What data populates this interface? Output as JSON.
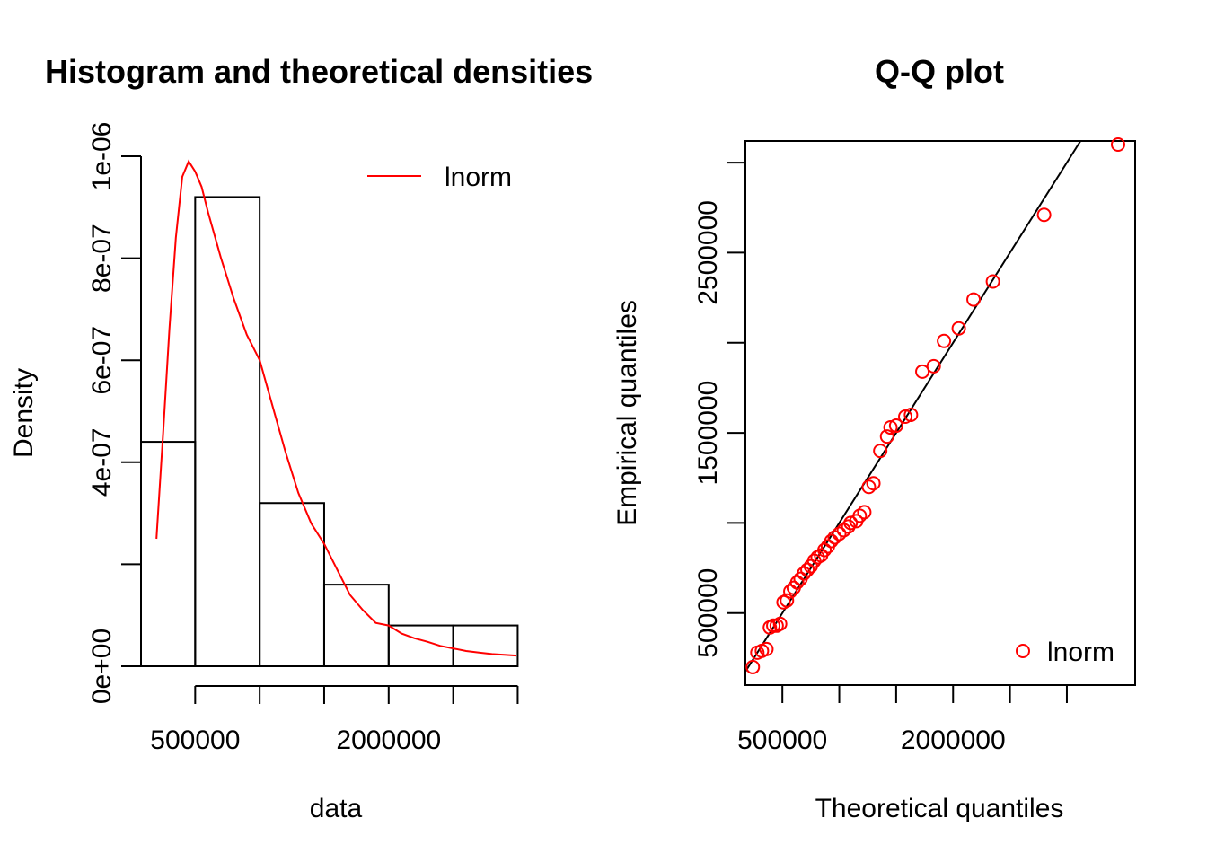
{
  "chart_data": [
    {
      "type": "bar",
      "title": "Histogram and theoretical densities",
      "xlabel": "data",
      "ylabel": "Density",
      "xlim": [
        80000,
        2990000
      ],
      "ylim": [
        0,
        1e-06
      ],
      "x_ticks": [
        500000,
        1000000,
        1500000,
        2000000,
        2500000,
        3000000
      ],
      "x_tick_labels": [
        "500000",
        "",
        "",
        "2000000",
        "",
        ""
      ],
      "y_ticks": [
        0,
        2e-07,
        4e-07,
        6e-07,
        8e-07,
        1e-06
      ],
      "y_tick_labels": [
        "0e+00",
        "",
        "4e-07",
        "6e-07",
        "8e-07",
        "1e-06"
      ],
      "bins": [
        {
          "from": 80000,
          "to": 500000,
          "density": 4.4e-07
        },
        {
          "from": 500000,
          "to": 1000000,
          "density": 9.2e-07
        },
        {
          "from": 1000000,
          "to": 1500000,
          "density": 3.2e-07
        },
        {
          "from": 1500000,
          "to": 2000000,
          "density": 1.6e-07
        },
        {
          "from": 2000000,
          "to": 2500000,
          "density": 8e-08
        },
        {
          "from": 2500000,
          "to": 3000000,
          "density": 8e-08
        }
      ],
      "series": [
        {
          "name": "lnorm",
          "color": "#ff0000",
          "kind": "line",
          "points": [
            [
              200000,
              2.5e-07
            ],
            [
              250000,
              4.5e-07
            ],
            [
              300000,
              6.6e-07
            ],
            [
              350000,
              8.4e-07
            ],
            [
              400000,
              9.6e-07
            ],
            [
              450000,
              9.9e-07
            ],
            [
              500000,
              9.7e-07
            ],
            [
              550000,
              9.4e-07
            ],
            [
              600000,
              8.9e-07
            ],
            [
              700000,
              8e-07
            ],
            [
              800000,
              7.2e-07
            ],
            [
              900000,
              6.5e-07
            ],
            [
              1000000,
              6e-07
            ],
            [
              1100000,
              5.1e-07
            ],
            [
              1200000,
              4.2e-07
            ],
            [
              1300000,
              3.4e-07
            ],
            [
              1400000,
              2.8e-07
            ],
            [
              1500000,
              2.4e-07
            ],
            [
              1600000,
              1.9e-07
            ],
            [
              1700000,
              1.4e-07
            ],
            [
              1800000,
              1.1e-07
            ],
            [
              1900000,
              8.5e-08
            ],
            [
              2000000,
              8e-08
            ],
            [
              2100000,
              6.4e-08
            ],
            [
              2200000,
              5.5e-08
            ],
            [
              2300000,
              4.8e-08
            ],
            [
              2400000,
              4e-08
            ],
            [
              2500000,
              3.5e-08
            ],
            [
              2600000,
              3e-08
            ],
            [
              2700000,
              2.7e-08
            ],
            [
              2800000,
              2.4e-08
            ],
            [
              2990000,
              2.1e-08
            ]
          ]
        }
      ],
      "legend": {
        "entries": [
          "lnorm"
        ],
        "position": "top-right"
      }
    },
    {
      "type": "scatter",
      "title": "Q-Q plot",
      "xlabel": "Theoretical quantiles",
      "ylabel": "Empirical quantiles",
      "xlim": [
        175000,
        3600000
      ],
      "ylim": [
        100000,
        3120000
      ],
      "x_ticks": [
        500000,
        1000000,
        1500000,
        2000000,
        2500000,
        3000000
      ],
      "x_tick_labels": [
        "500000",
        "",
        "",
        "2000000",
        "",
        ""
      ],
      "y_ticks": [
        500000,
        1000000,
        1500000,
        2000000,
        2500000,
        3000000
      ],
      "y_tick_labels": [
        "500000",
        "",
        "1500000",
        "",
        "2500000",
        ""
      ],
      "reference_line": {
        "slope": 1,
        "intercept": 0
      },
      "series": [
        {
          "name": "lnorm",
          "color": "#ff0000",
          "marker": "open-circle",
          "points": [
            [
              240000,
              200000
            ],
            [
              280000,
              280000
            ],
            [
              320000,
              290000
            ],
            [
              360000,
              300000
            ],
            [
              390000,
              420000
            ],
            [
              420000,
              430000
            ],
            [
              450000,
              430000
            ],
            [
              480000,
              440000
            ],
            [
              510000,
              560000
            ],
            [
              540000,
              570000
            ],
            [
              570000,
              620000
            ],
            [
              600000,
              640000
            ],
            [
              630000,
              670000
            ],
            [
              660000,
              690000
            ],
            [
              690000,
              720000
            ],
            [
              720000,
              740000
            ],
            [
              750000,
              760000
            ],
            [
              780000,
              790000
            ],
            [
              810000,
              810000
            ],
            [
              840000,
              820000
            ],
            [
              870000,
              850000
            ],
            [
              900000,
              870000
            ],
            [
              930000,
              900000
            ],
            [
              960000,
              920000
            ],
            [
              1000000,
              940000
            ],
            [
              1040000,
              960000
            ],
            [
              1080000,
              980000
            ],
            [
              1100000,
              1000000
            ],
            [
              1150000,
              1010000
            ],
            [
              1180000,
              1040000
            ],
            [
              1220000,
              1060000
            ],
            [
              1260000,
              1200000
            ],
            [
              1300000,
              1220000
            ],
            [
              1360000,
              1400000
            ],
            [
              1420000,
              1480000
            ],
            [
              1450000,
              1530000
            ],
            [
              1500000,
              1540000
            ],
            [
              1580000,
              1590000
            ],
            [
              1630000,
              1600000
            ],
            [
              1730000,
              1840000
            ],
            [
              1830000,
              1870000
            ],
            [
              1920000,
              2010000
            ],
            [
              2050000,
              2080000
            ],
            [
              2180000,
              2240000
            ],
            [
              2350000,
              2340000
            ],
            [
              2800000,
              2710000
            ],
            [
              3450000,
              3100000
            ]
          ]
        }
      ],
      "legend": {
        "entries": [
          "lnorm"
        ],
        "position": "bottom-right"
      }
    }
  ]
}
